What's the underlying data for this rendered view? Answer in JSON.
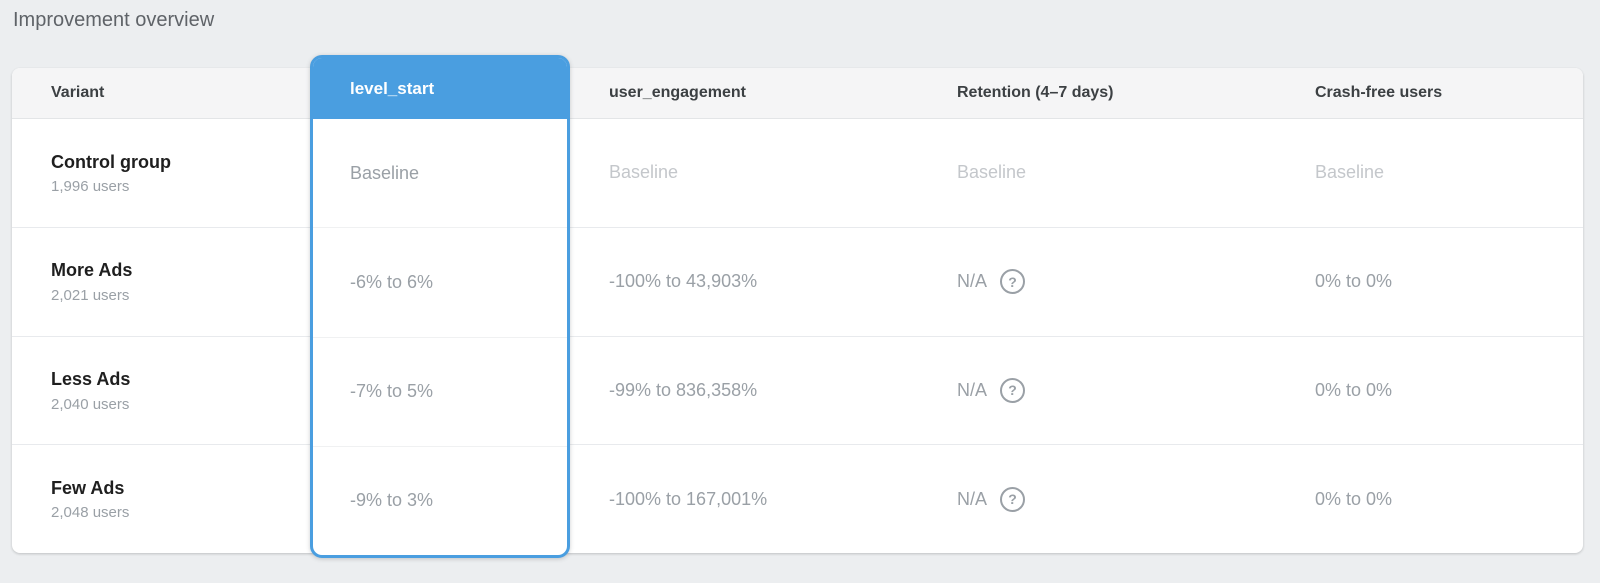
{
  "page": {
    "title": "Improvement overview"
  },
  "colors": {
    "accent_blue": "#4a9ee0",
    "page_background": "#eceef0",
    "header_background": "#f5f5f6",
    "baseline_text": "#c4c7cb",
    "value_text": "#9aa0a6"
  },
  "table": {
    "columns": {
      "variant": {
        "label": "Variant"
      },
      "level_start": {
        "label": "level_start",
        "selected": true
      },
      "user_engagement": {
        "label": "user_engagement"
      },
      "retention": {
        "label": "Retention (4–7 days)"
      },
      "crash_free": {
        "label": "Crash-free users"
      }
    },
    "help_icon_glyph": "?",
    "rows": [
      {
        "variant": "Control group",
        "users": "1,996 users",
        "level_start": "Baseline",
        "user_engagement": "Baseline",
        "retention": "Baseline",
        "crash_free": "Baseline"
      },
      {
        "variant": "More Ads",
        "users": "2,021 users",
        "level_start": "-6% to 6%",
        "user_engagement": "-100% to 43,903%",
        "retention": "N/A",
        "crash_free": "0% to 0%"
      },
      {
        "variant": "Less Ads",
        "users": "2,040 users",
        "level_start": "-7% to 5%",
        "user_engagement": "-99% to 836,358%",
        "retention": "N/A",
        "crash_free": "0% to 0%"
      },
      {
        "variant": "Few Ads",
        "users": "2,048 users",
        "level_start": "-9% to 3%",
        "user_engagement": "-100% to 167,001%",
        "retention": "N/A",
        "crash_free": "0% to 0%"
      }
    ]
  }
}
